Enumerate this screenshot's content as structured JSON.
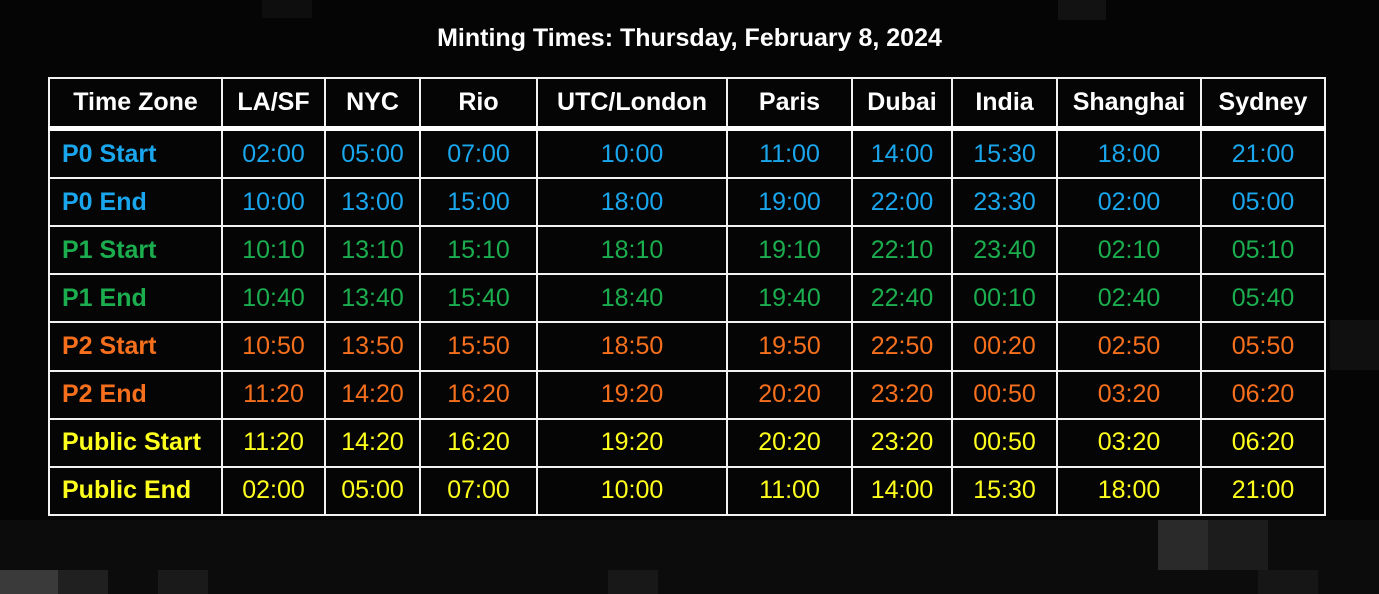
{
  "colors": {
    "background": "#050505",
    "border": "#f2f2f2",
    "header_text": "#ffffff",
    "P0": "#1aa6ec",
    "P1": "#1bad4e",
    "P2": "#f56f1d",
    "Public": "#ffff1e"
  },
  "title": "Minting Times: Thursday, February 8, 2024",
  "columns": [
    "Time Zone",
    "LA/SF",
    "NYC",
    "Rio",
    "UTC/London",
    "Paris",
    "Dubai",
    "India",
    "Shanghai",
    "Sydney"
  ],
  "rows": [
    {
      "label": "P0 Start",
      "color": "blue",
      "values": [
        "02:00",
        "05:00",
        "07:00",
        "10:00",
        "11:00",
        "14:00",
        "15:30",
        "18:00",
        "21:00"
      ]
    },
    {
      "label": "P0 End",
      "color": "blue",
      "values": [
        "10:00",
        "13:00",
        "15:00",
        "18:00",
        "19:00",
        "22:00",
        "23:30",
        "02:00",
        "05:00"
      ]
    },
    {
      "label": "P1 Start",
      "color": "green",
      "values": [
        "10:10",
        "13:10",
        "15:10",
        "18:10",
        "19:10",
        "22:10",
        "23:40",
        "02:10",
        "05:10"
      ]
    },
    {
      "label": "P1 End",
      "color": "green",
      "values": [
        "10:40",
        "13:40",
        "15:40",
        "18:40",
        "19:40",
        "22:40",
        "00:10",
        "02:40",
        "05:40"
      ]
    },
    {
      "label": "P2 Start",
      "color": "orange",
      "values": [
        "10:50",
        "13:50",
        "15:50",
        "18:50",
        "19:50",
        "22:50",
        "00:20",
        "02:50",
        "05:50"
      ]
    },
    {
      "label": "P2 End",
      "color": "orange",
      "values": [
        "11:20",
        "14:20",
        "16:20",
        "19:20",
        "20:20",
        "23:20",
        "00:50",
        "03:20",
        "06:20"
      ]
    },
    {
      "label": "Public Start",
      "color": "yellow",
      "values": [
        "11:20",
        "14:20",
        "16:20",
        "19:20",
        "20:20",
        "23:20",
        "00:50",
        "03:20",
        "06:20"
      ]
    },
    {
      "label": "Public End",
      "color": "yellow",
      "values": [
        "02:00",
        "05:00",
        "07:00",
        "10:00",
        "11:00",
        "14:00",
        "15:30",
        "18:00",
        "21:00"
      ]
    }
  ]
}
